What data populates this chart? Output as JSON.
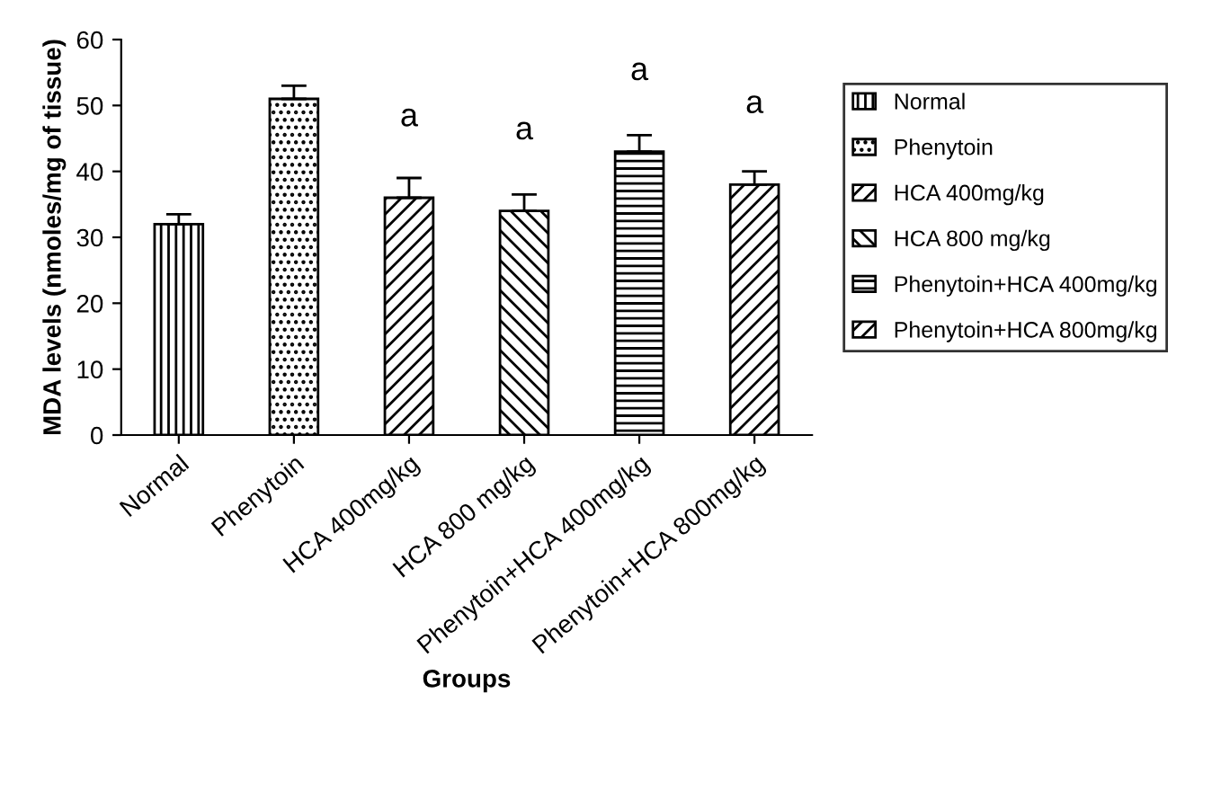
{
  "chart_data": {
    "type": "bar",
    "xlabel": "Groups",
    "ylabel": "MDA levels (nmoles/mg of tissue)",
    "categories": [
      "Normal",
      "Phenytoin",
      "HCA 400mg/kg",
      "HCA 800 mg/kg",
      "Phenytoin+HCA 400mg/kg",
      "Phenytoin+HCA 800mg/kg"
    ],
    "series": [
      {
        "name": "Normal",
        "color": "#000000",
        "values": [
          32,
          null,
          null,
          null,
          null,
          null
        ],
        "errors": [
          1.5,
          null,
          null,
          null,
          null,
          null
        ]
      },
      {
        "name": "Phenytoin",
        "color": "#000000",
        "values": [
          null,
          51,
          null,
          null,
          null,
          null
        ],
        "errors": [
          null,
          2,
          null,
          null,
          null,
          null
        ]
      },
      {
        "name": "HCA 400mg/kg",
        "color": "#000000",
        "values": [
          null,
          null,
          36,
          null,
          null,
          null
        ],
        "errors": [
          null,
          null,
          3,
          null,
          null,
          null
        ]
      },
      {
        "name": "HCA 800 mg/kg",
        "color": "#000000",
        "values": [
          null,
          null,
          null,
          34,
          null,
          null
        ],
        "errors": [
          null,
          null,
          null,
          2.5,
          null,
          null
        ]
      },
      {
        "name": "Phenytoin+HCA 400mg/kg",
        "color": "#000000",
        "values": [
          null,
          null,
          null,
          null,
          43,
          null
        ],
        "errors": [
          null,
          null,
          null,
          null,
          2.5,
          null
        ]
      },
      {
        "name": "Phenytoin+HCA 800mg/kg",
        "color": "#000000",
        "values": [
          null,
          null,
          null,
          null,
          null,
          38
        ],
        "errors": [
          null,
          null,
          null,
          null,
          null,
          2
        ]
      }
    ],
    "ylim": [
      0,
      60
    ],
    "yticks": [
      0,
      10,
      20,
      30,
      40,
      50,
      60
    ],
    "annotations": [
      {
        "text": "a",
        "x": "HCA 400mg/kg",
        "y": 36
      },
      {
        "text": "a",
        "x": "HCA 800 mg/kg",
        "y": 34
      },
      {
        "text": "a",
        "x": "Phenytoin+HCA 400mg/kg",
        "y": 43
      },
      {
        "text": "a",
        "x": "Phenytoin+HCA 800mg/kg",
        "y": 38
      }
    ],
    "grid": false,
    "legend": "right"
  }
}
